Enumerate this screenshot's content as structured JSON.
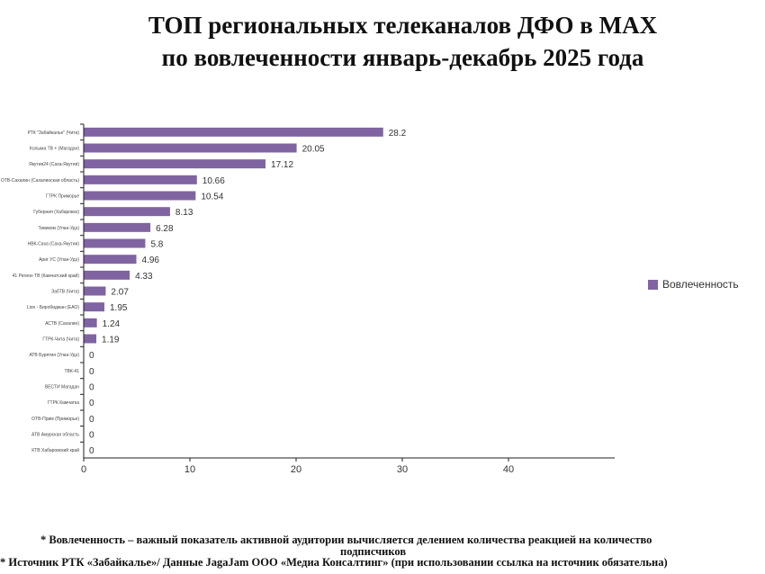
{
  "title": [
    "ТОП региональных телеканалов ДФО в MAX",
    "по вовлеченности январь-декабрь 2025 года"
  ],
  "chart_data": {
    "type": "bar",
    "orientation": "horizontal",
    "categories": [
      "РТК \"Забайкалье\" (Чита)",
      "Колыма ТВ + (Магадан)",
      "Якутия24 (Саха-Якутия)",
      "ОТВ-Сахалин (Сахалинская область)",
      "ГТРК Приморье",
      "Губерния (Хабаровск)",
      "Тивиком (Улан-Удэ)",
      "НВК-Саха (Саха-Якутия)",
      "Ариг УС (Улан-Удэ)",
      "41 Регион ТВ (Камчатский край)",
      "ЗабТВ (Чита)",
      "Lion - Биробиджан (ЕАО)",
      "АСТВ (Сахалин)",
      "ГТРК-Чита (Чита)",
      "АТВ Бурятия (Улан-Удэ)",
      "ТВК-41",
      "ВЕСТИ Магадан",
      "ГТРК Камчатка",
      "ОТВ-Прим (Приморье)",
      "АТВ Амурская область",
      "КТВ Хабаровский край"
    ],
    "series": [
      {
        "name": "Вовлеченность",
        "values": [
          28.2,
          20.05,
          17.12,
          10.66,
          10.54,
          8.13,
          6.28,
          5.8,
          4.96,
          4.33,
          2.07,
          1.95,
          1.24,
          1.19,
          0,
          0,
          0,
          0,
          0,
          0,
          0
        ],
        "color": "#8064a2"
      }
    ],
    "data_labels": [
      "28.2",
      "20.05",
      "17.12",
      "10.66",
      "10.54",
      "8.13",
      "6.28",
      "5.8",
      "4.96",
      "4.33",
      "2.07",
      "1.95",
      "1.24",
      "1.19",
      "0",
      "0",
      "0",
      "0",
      "0",
      "0",
      "0"
    ],
    "xlim": [
      0,
      50
    ],
    "xticks": [
      "0",
      "10",
      "20",
      "30",
      "40"
    ],
    "grid": false,
    "legend": "right"
  },
  "footnotes": [
    "* Вовлеченность –  важный показатель активной аудитории вычисляется делением количества реакцией на количество",
    "подписчиков",
    "* Источник РТК «Забайкалье»/ Данные JagaJam ООО «Медиа Консалтинг» (при использовании ссылка на источник обязательна)"
  ]
}
